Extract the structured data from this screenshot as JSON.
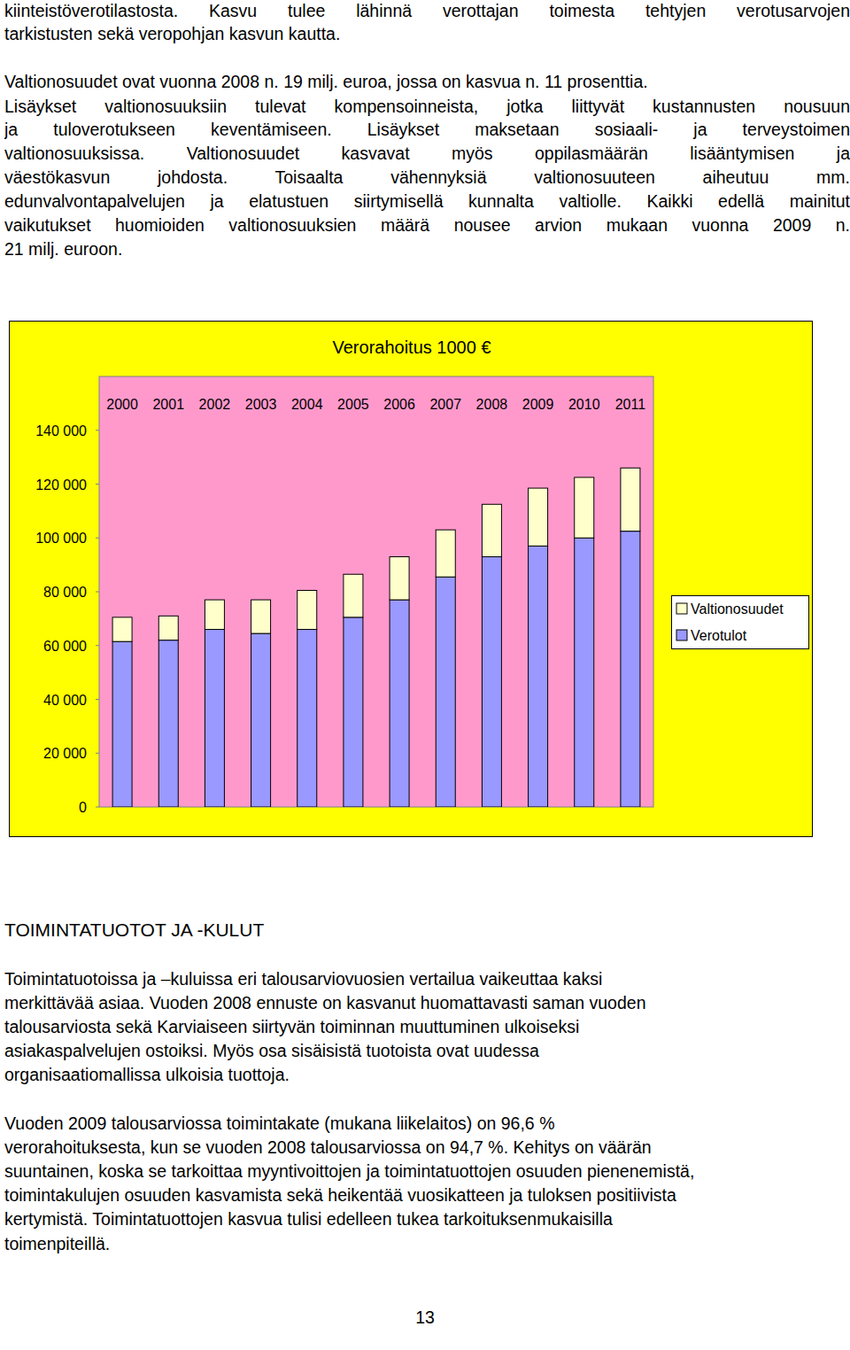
{
  "document": {
    "top_paragraphs": [
      [
        "kiinteistöverotilastosta. Kasvu tulee lähinnä verottajan toimesta tehtyjen verotusarvojen",
        "tarkistusten sekä veropohjan kasvun kautta."
      ],
      [
        "Valtionosuudet ovat vuonna 2008 n. 19 milj. euroa, jossa on kasvua n. 11 prosenttia."
      ],
      [
        "Lisäykset valtionosuuksiin tulevat kompensoinneista, jotka liittyvät kustannusten nousuun",
        "ja tuloverotukseen keventämiseen. Lisäykset maksetaan sosiaali- ja terveystoimen",
        "valtionosuuksissa. Valtionosuudet kasvavat  myös oppilasmäärän lisääntymisen ja",
        "väestökasvun johdosta. Toisaalta vähennyksiä valtionosuuteen aiheutuu mm.",
        "edunvalvontapalvelujen ja elatustuen siirtymisellä kunnalta valtiolle. Kaikki edellä mainitut",
        "vaikutukset huomioiden valtionosuuksien määrä nousee arvion mukaan vuonna 2009  n.",
        "21 milj. euroon."
      ]
    ],
    "heading": "TOIMINTATUOTOT JA -KULUT",
    "bottom_paragraphs": [
      [
        "Toimintatuotoissa ja –kuluissa eri talousarviovuosien vertailua vaikeuttaa kaksi",
        "merkittävää asiaa. Vuoden 2008 ennuste on kasvanut huomattavasti saman vuoden",
        "talousarviosta sekä Karviaiseen siirtyvän toiminnan muuttuminen ulkoiseksi",
        "asiakaspalvelujen ostoiksi. Myös osa sisäisistä tuotoista ovat uudessa",
        "organisaatiomallissa ulkoisia tuottoja."
      ],
      [
        "Vuoden 2009 talousarviossa toimintakate (mukana liikelaitos) on 96,6 %",
        "verorahoituksesta, kun se vuoden 2008 talousarviossa on 94,7 %. Kehitys on väärän",
        "suuntainen, koska se tarkoittaa myyntivoittojen ja toimintatuottojen osuuden pienenemistä,",
        "toimintakulujen osuuden kasvamista sekä heikentää vuosikatteen ja tuloksen positiivista",
        "kertymistä. Toimintatuottojen kasvua tulisi edelleen tukea tarkoituksenmukaisilla",
        "toimenpiteillä."
      ]
    ],
    "page_number": "13"
  },
  "chart_data": {
    "type": "bar",
    "title": "Verorahoitus 1000 €",
    "stacked": true,
    "grid": false,
    "legend": "right",
    "categories": [
      "2000",
      "2001",
      "2002",
      "2003",
      "2004",
      "2005",
      "2006",
      "2007",
      "2008",
      "2009",
      "2010",
      "2011"
    ],
    "series": [
      {
        "name": "Valtionosuudet",
        "color": "#ffffcc",
        "values": [
          9000,
          9000,
          11000,
          12500,
          14500,
          16000,
          16000,
          17500,
          19500,
          21500,
          22500,
          23500
        ]
      },
      {
        "name": "Verotulot",
        "color": "#9999ff",
        "values": [
          61500,
          62000,
          66000,
          64500,
          66000,
          70500,
          77000,
          85500,
          93000,
          97000,
          100000,
          102500
        ]
      }
    ],
    "ylim": [
      0,
      160000
    ],
    "yticks": [
      0,
      {
        "value": 20000,
        "label": "20 000"
      },
      {
        "value": 40000,
        "label": "40 000"
      },
      {
        "value": 60000,
        "label": "60 000"
      },
      {
        "value": 80000,
        "label": "80 000"
      },
      {
        "value": 100000,
        "label": "100 000"
      },
      {
        "value": 120000,
        "label": "120 000"
      },
      {
        "value": 140000,
        "label": "140 000"
      }
    ]
  }
}
